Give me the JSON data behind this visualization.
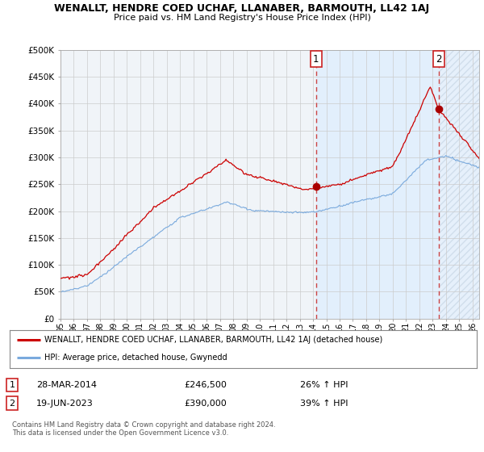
{
  "title": "WENALLT, HENDRE COED UCHAF, LLANABER, BARMOUTH, LL42 1AJ",
  "subtitle": "Price paid vs. HM Land Registry's House Price Index (HPI)",
  "ylabel_ticks": [
    "£0",
    "£50K",
    "£100K",
    "£150K",
    "£200K",
    "£250K",
    "£300K",
    "£350K",
    "£400K",
    "£450K",
    "£500K"
  ],
  "ytick_values": [
    0,
    50000,
    100000,
    150000,
    200000,
    250000,
    300000,
    350000,
    400000,
    450000,
    500000
  ],
  "ylim": [
    0,
    500000
  ],
  "xlim_start": 1995.0,
  "xlim_end": 2026.5,
  "grid_color": "#cccccc",
  "bg_color": "#ffffff",
  "plot_bg_color": "#f0f4f8",
  "red_line_color": "#cc0000",
  "blue_line_color": "#7aaadd",
  "shade_color": "#ddeeff",
  "hatch_color": "#ccddee",
  "marker_color_red": "#aa0000",
  "vline_color": "#cc4444",
  "point1_x": 2014.23,
  "point1_y": 246500,
  "point2_x": 2023.47,
  "point2_y": 390000,
  "label1_date": "28-MAR-2014",
  "label1_price": "£246,500",
  "label1_hpi": "26% ↑ HPI",
  "label2_date": "19-JUN-2023",
  "label2_price": "£390,000",
  "label2_hpi": "39% ↑ HPI",
  "legend_red_label": "WENALLT, HENDRE COED UCHAF, LLANABER, BARMOUTH, LL42 1AJ (detached house)",
  "legend_blue_label": "HPI: Average price, detached house, Gwynedd",
  "footer_line1": "Contains HM Land Registry data © Crown copyright and database right 2024.",
  "footer_line2": "This data is licensed under the Open Government Licence v3.0.",
  "xtick_years": [
    "95",
    "96",
    "97",
    "98",
    "99",
    "00",
    "01",
    "02",
    "03",
    "04",
    "05",
    "06",
    "07",
    "08",
    "09",
    "10",
    "11",
    "12",
    "13",
    "14",
    "15",
    "16",
    "17",
    "18",
    "19",
    "20",
    "21",
    "22",
    "23",
    "24",
    "25",
    "26"
  ],
  "xtick_pos": [
    1995,
    1996,
    1997,
    1998,
    1999,
    2000,
    2001,
    2002,
    2003,
    2004,
    2005,
    2006,
    2007,
    2008,
    2009,
    2010,
    2011,
    2012,
    2013,
    2014,
    2015,
    2016,
    2017,
    2018,
    2019,
    2020,
    2021,
    2022,
    2023,
    2024,
    2025,
    2026
  ]
}
